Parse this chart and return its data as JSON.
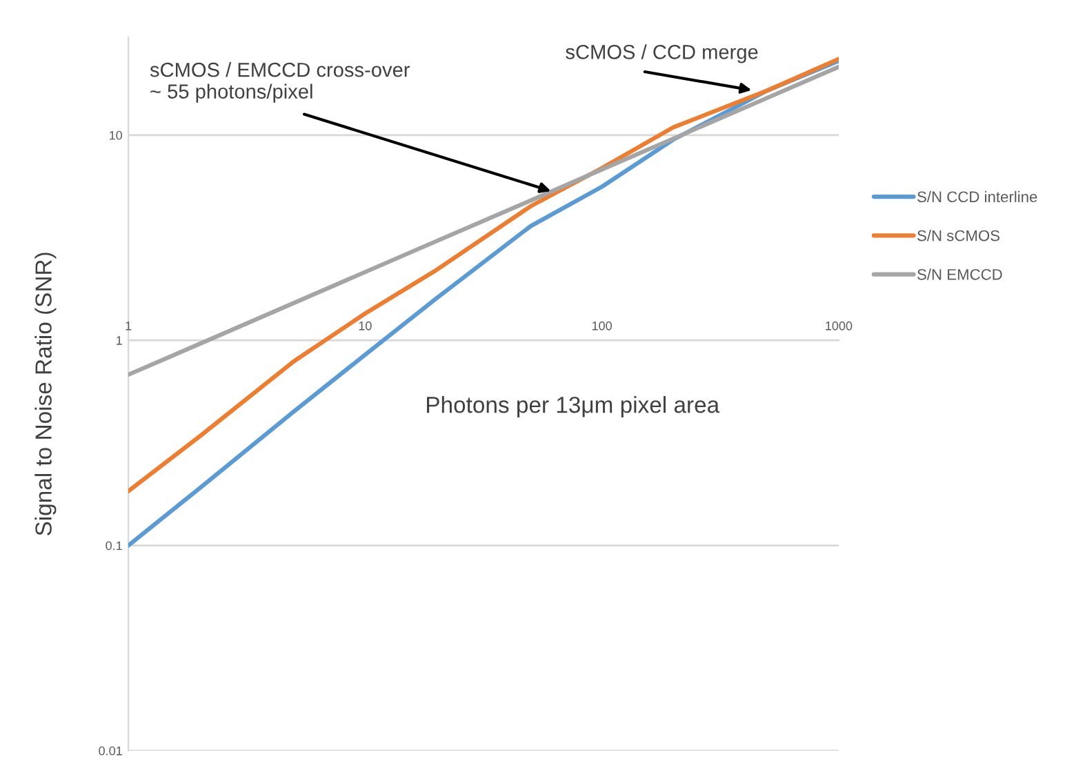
{
  "chart_data": {
    "type": "line",
    "xlabel": "Photons per 13μm pixel area",
    "ylabel": "Signal to Noise Ratio (SNR)",
    "x": [
      1,
      2,
      5,
      10,
      20,
      50,
      100,
      200,
      500,
      1000
    ],
    "series": [
      {
        "name": "S/N CCD interline",
        "color": "#5b9bd5",
        "values": [
          0.1,
          0.19,
          0.45,
          0.85,
          1.6,
          3.6,
          5.6,
          9.5,
          16.5,
          23
        ]
      },
      {
        "name": "S/N sCMOS",
        "color": "#ed7d31",
        "values": [
          0.184,
          0.34,
          0.79,
          1.35,
          2.2,
          4.5,
          6.9,
          10.9,
          16.5,
          23.5
        ]
      },
      {
        "name": "S/N EMCCD",
        "color": "#a5a5a5",
        "values": [
          0.68,
          0.96,
          1.52,
          2.15,
          3.04,
          4.8,
          6.8,
          9.6,
          15.2,
          21.5
        ]
      }
    ],
    "annotations": [
      {
        "text": "sCMOS / EMCCD cross-over\n~ 55 photons/pixel",
        "x": 62,
        "y": 5.3
      },
      {
        "text": "sCMOS / CCD merge",
        "x": 437,
        "y": 16.5
      }
    ],
    "log": "xy",
    "xlim": [
      1,
      1000
    ],
    "ylim": [
      0.01,
      30
    ],
    "xticks": [
      1,
      10,
      100,
      1000
    ],
    "yticks": [
      0.01,
      0.1,
      1,
      10
    ],
    "grid": "y",
    "legend": "right"
  }
}
